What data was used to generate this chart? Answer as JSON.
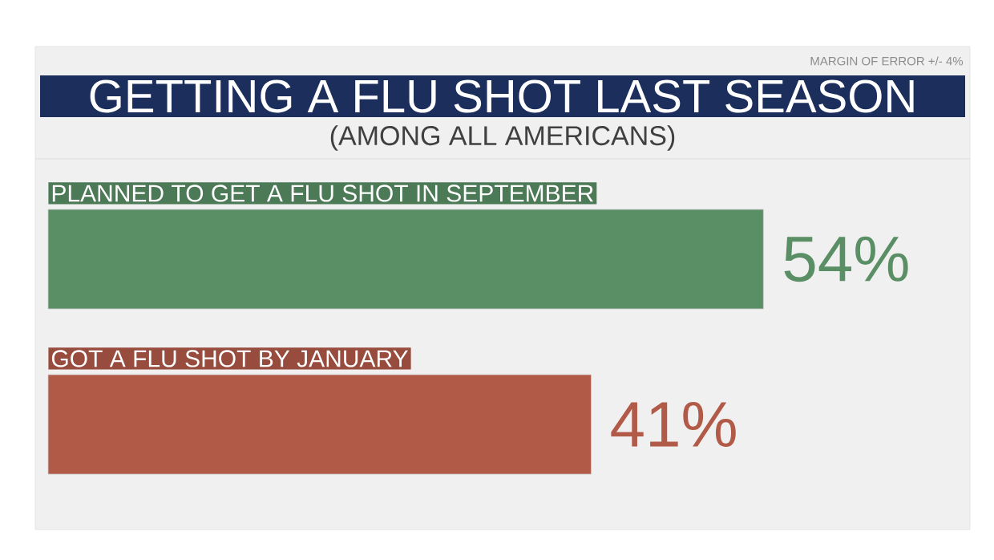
{
  "chart_data": {
    "type": "bar",
    "orientation": "horizontal",
    "title": "GETTING A FLU SHOT LAST SEASON",
    "subtitle": "(AMONG ALL AMERICANS)",
    "annotations": [
      "MARGIN OF ERROR +/- 4%"
    ],
    "categories": [
      "PLANNED TO GET A FLU SHOT IN SEPTEMBER",
      "GOT A FLU SHOT BY JANUARY"
    ],
    "values": [
      54,
      41
    ],
    "value_labels": [
      "54%",
      "41%"
    ],
    "colors": [
      "#5a8f66",
      "#b25a48"
    ]
  }
}
